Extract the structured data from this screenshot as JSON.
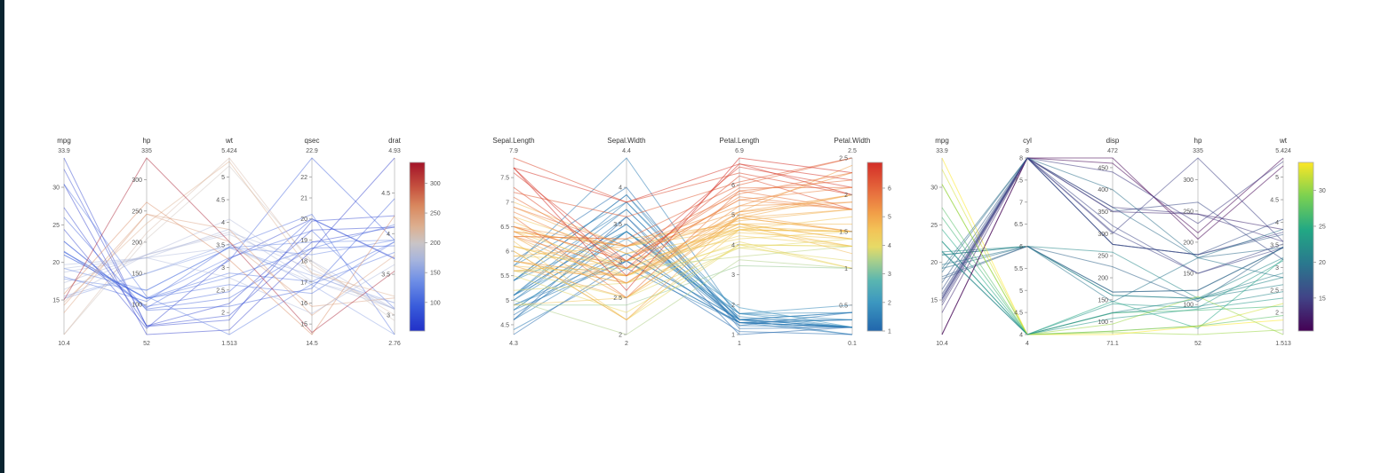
{
  "page": {
    "background": "#ffffff",
    "edge_bar_color": "#0a2430"
  },
  "chart_data": [
    {
      "type": "parallel-coordinates",
      "title": "",
      "color_axis_index": 1,
      "line_opacity": 0.45,
      "axes": [
        {
          "label": "mpg",
          "top_label": "33.9",
          "bottom_label": "10.4",
          "min": 10.4,
          "max": 33.9,
          "ticks": [
            15,
            20,
            25,
            30
          ]
        },
        {
          "label": "hp",
          "top_label": "335",
          "bottom_label": "52",
          "min": 52,
          "max": 335,
          "ticks": [
            100,
            150,
            200,
            250,
            300
          ]
        },
        {
          "label": "wt",
          "top_label": "5.424",
          "bottom_label": "1.513",
          "min": 1.513,
          "max": 5.424,
          "ticks": [
            2,
            2.5,
            3,
            3.5,
            4,
            4.5,
            5
          ]
        },
        {
          "label": "qsec",
          "top_label": "22.9",
          "bottom_label": "14.5",
          "min": 14.5,
          "max": 22.9,
          "ticks": [
            15,
            16,
            17,
            18,
            19,
            20,
            21,
            22
          ]
        },
        {
          "label": "drat",
          "top_label": "4.93",
          "bottom_label": "2.76",
          "min": 2.76,
          "max": 4.93,
          "ticks": [
            3,
            3.5,
            4,
            4.5
          ]
        }
      ],
      "colorbar": {
        "min": 52,
        "max": 335,
        "ticks": [
          100,
          150,
          200,
          250,
          300
        ],
        "stops": [
          [
            0,
            "#2130c8"
          ],
          [
            0.15,
            "#3a5ddb"
          ],
          [
            0.3,
            "#6f8fe6"
          ],
          [
            0.42,
            "#a6b4dd"
          ],
          [
            0.52,
            "#c9c4c6"
          ],
          [
            0.62,
            "#dcaf90"
          ],
          [
            0.74,
            "#d9895f"
          ],
          [
            0.85,
            "#c65340"
          ],
          [
            1,
            "#a31328"
          ]
        ]
      },
      "rows": [
        [
          21.0,
          110,
          2.62,
          16.46,
          3.9
        ],
        [
          21.0,
          110,
          2.875,
          17.02,
          3.9
        ],
        [
          22.8,
          93,
          2.32,
          18.61,
          3.85
        ],
        [
          21.4,
          110,
          3.215,
          19.44,
          3.08
        ],
        [
          18.7,
          175,
          3.44,
          17.02,
          3.15
        ],
        [
          18.1,
          105,
          3.46,
          20.22,
          2.76
        ],
        [
          14.3,
          245,
          3.57,
          15.84,
          3.21
        ],
        [
          24.4,
          62,
          3.19,
          20.0,
          3.69
        ],
        [
          22.8,
          95,
          3.15,
          22.9,
          3.92
        ],
        [
          19.2,
          123,
          3.44,
          18.3,
          3.92
        ],
        [
          17.8,
          123,
          3.44,
          18.9,
          3.92
        ],
        [
          16.4,
          180,
          4.07,
          17.4,
          3.07
        ],
        [
          17.3,
          180,
          3.73,
          17.6,
          3.07
        ],
        [
          15.2,
          180,
          3.78,
          18.0,
          3.07
        ],
        [
          10.4,
          205,
          5.25,
          17.98,
          2.93
        ],
        [
          10.4,
          215,
          5.424,
          17.82,
          3.0
        ],
        [
          14.7,
          230,
          5.345,
          17.42,
          3.23
        ],
        [
          32.4,
          66,
          2.2,
          19.47,
          4.08
        ],
        [
          30.4,
          52,
          1.615,
          18.52,
          4.93
        ],
        [
          33.9,
          65,
          1.835,
          19.9,
          4.22
        ],
        [
          21.5,
          97,
          2.465,
          20.01,
          3.7
        ],
        [
          15.5,
          150,
          3.52,
          16.87,
          2.76
        ],
        [
          15.2,
          150,
          3.435,
          17.3,
          3.15
        ],
        [
          13.3,
          245,
          3.84,
          15.41,
          3.73
        ],
        [
          19.2,
          175,
          3.845,
          17.05,
          3.08
        ],
        [
          27.3,
          66,
          1.935,
          18.9,
          4.08
        ],
        [
          26.0,
          91,
          2.14,
          16.7,
          4.43
        ],
        [
          30.4,
          113,
          1.513,
          16.9,
          3.77
        ],
        [
          15.8,
          264,
          3.17,
          14.5,
          4.22
        ],
        [
          19.7,
          175,
          2.77,
          15.5,
          3.62
        ],
        [
          15.0,
          335,
          3.57,
          14.6,
          3.54
        ],
        [
          21.4,
          109,
          2.78,
          18.6,
          4.11
        ]
      ]
    },
    {
      "type": "parallel-coordinates",
      "title": "",
      "color_axis_index": 2,
      "line_opacity": 0.55,
      "axes": [
        {
          "label": "Sepal.Length",
          "top_label": "7.9",
          "bottom_label": "4.3",
          "min": 4.3,
          "max": 7.9,
          "ticks": [
            4.5,
            5,
            5.5,
            6,
            6.5,
            7,
            7.5
          ]
        },
        {
          "label": "Sepal.Width",
          "top_label": "4.4",
          "bottom_label": "2",
          "min": 2,
          "max": 4.4,
          "ticks": [
            2,
            2.5,
            3,
            3.5,
            4
          ]
        },
        {
          "label": "Petal.Length",
          "top_label": "6.9",
          "bottom_label": "1",
          "min": 1,
          "max": 6.9,
          "ticks": [
            1,
            2,
            3,
            4,
            5,
            6
          ]
        },
        {
          "label": "Petal.Width",
          "top_label": "2.5",
          "bottom_label": "0.1",
          "min": 0.1,
          "max": 2.5,
          "ticks": [
            0.5,
            1,
            1.5,
            2,
            2.5
          ]
        }
      ],
      "colorbar": {
        "min": 1,
        "max": 6.9,
        "ticks": [
          1,
          2,
          3,
          4,
          5,
          6
        ],
        "stops": [
          [
            0,
            "#2166ac"
          ],
          [
            0.17,
            "#3c97c0"
          ],
          [
            0.3,
            "#5ab6b0"
          ],
          [
            0.42,
            "#abd08a"
          ],
          [
            0.5,
            "#e7da66"
          ],
          [
            0.6,
            "#f3c357"
          ],
          [
            0.7,
            "#f19e48"
          ],
          [
            0.82,
            "#e76f3e"
          ],
          [
            1,
            "#d32d27"
          ]
        ]
      },
      "rows": [
        [
          5.1,
          3.5,
          1.4,
          0.2
        ],
        [
          4.9,
          3.0,
          1.4,
          0.2
        ],
        [
          4.7,
          3.2,
          1.3,
          0.2
        ],
        [
          4.6,
          3.1,
          1.5,
          0.2
        ],
        [
          5.0,
          3.6,
          1.4,
          0.2
        ],
        [
          5.4,
          3.9,
          1.7,
          0.4
        ],
        [
          4.6,
          3.4,
          1.4,
          0.3
        ],
        [
          5.0,
          3.4,
          1.5,
          0.2
        ],
        [
          4.4,
          2.9,
          1.4,
          0.2
        ],
        [
          4.9,
          3.1,
          1.5,
          0.1
        ],
        [
          5.4,
          3.7,
          1.5,
          0.2
        ],
        [
          4.8,
          3.4,
          1.6,
          0.2
        ],
        [
          4.8,
          3.0,
          1.4,
          0.1
        ],
        [
          4.3,
          3.0,
          1.1,
          0.1
        ],
        [
          5.8,
          4.0,
          1.2,
          0.2
        ],
        [
          5.7,
          4.4,
          1.5,
          0.4
        ],
        [
          5.4,
          3.9,
          1.3,
          0.4
        ],
        [
          5.1,
          3.5,
          1.4,
          0.3
        ],
        [
          5.7,
          3.8,
          1.7,
          0.3
        ],
        [
          5.1,
          3.8,
          1.5,
          0.3
        ],
        [
          5.4,
          3.4,
          1.7,
          0.2
        ],
        [
          5.1,
          3.7,
          1.5,
          0.4
        ],
        [
          4.6,
          3.6,
          1.0,
          0.2
        ],
        [
          5.1,
          3.3,
          1.7,
          0.5
        ],
        [
          4.8,
          3.4,
          1.9,
          0.2
        ],
        [
          7.0,
          3.2,
          4.7,
          1.4
        ],
        [
          6.4,
          3.2,
          4.5,
          1.5
        ],
        [
          6.9,
          3.1,
          4.9,
          1.5
        ],
        [
          5.5,
          2.3,
          4.0,
          1.3
        ],
        [
          6.5,
          2.8,
          4.6,
          1.5
        ],
        [
          5.7,
          2.8,
          4.5,
          1.3
        ],
        [
          6.3,
          3.3,
          4.7,
          1.6
        ],
        [
          4.9,
          2.4,
          3.3,
          1.0
        ],
        [
          6.6,
          2.9,
          4.6,
          1.3
        ],
        [
          5.2,
          2.7,
          3.9,
          1.4
        ],
        [
          5.0,
          2.0,
          3.5,
          1.0
        ],
        [
          5.9,
          3.0,
          4.2,
          1.5
        ],
        [
          6.0,
          2.2,
          4.0,
          1.0
        ],
        [
          6.1,
          2.9,
          4.7,
          1.4
        ],
        [
          5.6,
          2.9,
          3.6,
          1.3
        ],
        [
          6.7,
          3.1,
          4.4,
          1.4
        ],
        [
          5.6,
          3.0,
          4.5,
          1.5
        ],
        [
          5.8,
          2.7,
          4.1,
          1.0
        ],
        [
          6.2,
          2.2,
          4.5,
          1.5
        ],
        [
          5.6,
          2.5,
          3.9,
          1.1
        ],
        [
          5.9,
          3.2,
          4.8,
          1.8
        ],
        [
          6.1,
          2.8,
          4.0,
          1.3
        ],
        [
          6.3,
          2.5,
          4.9,
          1.5
        ],
        [
          6.1,
          2.8,
          4.7,
          1.2
        ],
        [
          6.4,
          2.9,
          4.3,
          1.3
        ],
        [
          6.3,
          3.3,
          6.0,
          2.5
        ],
        [
          5.8,
          2.7,
          5.1,
          1.9
        ],
        [
          7.1,
          3.0,
          5.9,
          2.1
        ],
        [
          6.3,
          2.9,
          5.6,
          1.8
        ],
        [
          6.5,
          3.0,
          5.8,
          2.2
        ],
        [
          7.6,
          3.0,
          6.6,
          2.1
        ],
        [
          4.9,
          2.5,
          4.5,
          1.7
        ],
        [
          7.3,
          2.9,
          6.3,
          1.8
        ],
        [
          6.7,
          2.5,
          5.8,
          1.8
        ],
        [
          7.2,
          3.6,
          6.1,
          2.5
        ],
        [
          6.5,
          3.2,
          5.1,
          2.0
        ],
        [
          6.4,
          2.7,
          5.3,
          1.9
        ],
        [
          6.8,
          3.0,
          5.5,
          2.1
        ],
        [
          5.7,
          2.5,
          5.0,
          2.0
        ],
        [
          5.8,
          2.8,
          5.1,
          2.4
        ],
        [
          6.4,
          3.2,
          5.3,
          2.3
        ],
        [
          6.5,
          3.0,
          5.5,
          1.8
        ],
        [
          7.7,
          3.8,
          6.7,
          2.2
        ],
        [
          7.7,
          2.6,
          6.9,
          2.3
        ],
        [
          6.0,
          2.2,
          5.0,
          1.5
        ],
        [
          6.9,
          3.2,
          5.7,
          2.3
        ],
        [
          5.6,
          2.8,
          4.9,
          2.0
        ],
        [
          7.7,
          2.8,
          6.7,
          2.0
        ],
        [
          6.3,
          2.7,
          4.9,
          1.8
        ],
        [
          7.9,
          3.8,
          6.4,
          2.0
        ]
      ]
    },
    {
      "type": "parallel-coordinates",
      "title": "",
      "color_axis_index": 0,
      "line_opacity": 0.55,
      "axes": [
        {
          "label": "mpg",
          "top_label": "33.9",
          "bottom_label": "10.4",
          "min": 10.4,
          "max": 33.9,
          "ticks": [
            15,
            20,
            25,
            30
          ]
        },
        {
          "label": "cyl",
          "top_label": "8",
          "bottom_label": "4",
          "min": 4,
          "max": 8,
          "ticks": [
            4,
            4.5,
            5,
            5.5,
            6,
            6.5,
            7,
            7.5,
            8
          ]
        },
        {
          "label": "disp",
          "top_label": "472",
          "bottom_label": "71.1",
          "min": 71.1,
          "max": 472,
          "ticks": [
            100,
            150,
            200,
            250,
            300,
            350,
            400,
            450
          ]
        },
        {
          "label": "hp",
          "top_label": "335",
          "bottom_label": "52",
          "min": 52,
          "max": 335,
          "ticks": [
            100,
            150,
            200,
            250,
            300
          ]
        },
        {
          "label": "wt",
          "top_label": "5.424",
          "bottom_label": "1.513",
          "min": 1.513,
          "max": 5.424,
          "ticks": [
            2,
            2.5,
            3,
            3.5,
            4,
            4.5,
            5
          ]
        }
      ],
      "colorbar": {
        "min": 10.4,
        "max": 33.9,
        "ticks": [
          15,
          20,
          25,
          30
        ],
        "stops": [
          [
            0,
            "#440154"
          ],
          [
            0.2,
            "#414487"
          ],
          [
            0.4,
            "#2a788e"
          ],
          [
            0.6,
            "#22a884"
          ],
          [
            0.8,
            "#7ad151"
          ],
          [
            1,
            "#fde725"
          ]
        ]
      },
      "rows": [
        [
          21.0,
          6,
          160.0,
          110,
          2.62
        ],
        [
          21.0,
          6,
          160.0,
          110,
          2.875
        ],
        [
          22.8,
          4,
          108.0,
          93,
          2.32
        ],
        [
          21.4,
          6,
          258.0,
          110,
          3.215
        ],
        [
          18.7,
          8,
          360.0,
          175,
          3.44
        ],
        [
          18.1,
          6,
          225.0,
          105,
          3.46
        ],
        [
          14.3,
          8,
          360.0,
          245,
          3.57
        ],
        [
          24.4,
          4,
          146.7,
          62,
          3.19
        ],
        [
          22.8,
          4,
          140.8,
          95,
          3.15
        ],
        [
          19.2,
          6,
          167.6,
          123,
          3.44
        ],
        [
          17.8,
          6,
          167.6,
          123,
          3.44
        ],
        [
          16.4,
          8,
          275.8,
          180,
          4.07
        ],
        [
          17.3,
          8,
          275.8,
          180,
          3.73
        ],
        [
          15.2,
          8,
          275.8,
          180,
          3.78
        ],
        [
          10.4,
          8,
          472.0,
          205,
          5.25
        ],
        [
          10.4,
          8,
          460.0,
          215,
          5.424
        ],
        [
          14.7,
          8,
          440.0,
          230,
          5.345
        ],
        [
          32.4,
          4,
          78.7,
          66,
          2.2
        ],
        [
          30.4,
          4,
          75.7,
          52,
          1.615
        ],
        [
          33.9,
          4,
          71.1,
          65,
          1.835
        ],
        [
          21.5,
          4,
          120.1,
          97,
          2.465
        ],
        [
          15.5,
          8,
          318.0,
          150,
          3.52
        ],
        [
          15.2,
          8,
          304.0,
          150,
          3.435
        ],
        [
          13.3,
          8,
          350.0,
          245,
          3.84
        ],
        [
          19.2,
          8,
          400.0,
          175,
          3.845
        ],
        [
          27.3,
          4,
          79.0,
          66,
          1.935
        ],
        [
          26.0,
          4,
          120.3,
          91,
          2.14
        ],
        [
          30.4,
          4,
          95.1,
          113,
          1.513
        ],
        [
          15.8,
          8,
          351.0,
          264,
          3.17
        ],
        [
          19.7,
          6,
          145.0,
          175,
          2.77
        ],
        [
          15.0,
          8,
          301.0,
          335,
          3.57
        ],
        [
          21.4,
          4,
          121.0,
          109,
          2.78
        ]
      ]
    }
  ]
}
